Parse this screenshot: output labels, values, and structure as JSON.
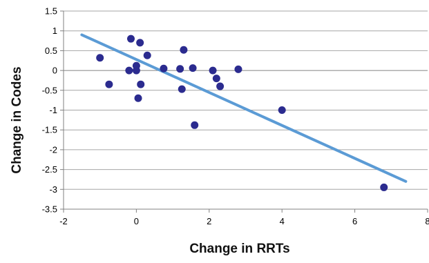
{
  "chart_data": {
    "type": "scatter",
    "title": "",
    "xlabel": "Change in RRTs",
    "ylabel": "Change in Codes",
    "xlim": [
      -2,
      8
    ],
    "ylim": [
      -3.5,
      1.5
    ],
    "x_ticks": [
      -2,
      0,
      2,
      4,
      6,
      8
    ],
    "x_tick_labels": [
      "-2",
      "0",
      "2",
      "4",
      "6",
      "8"
    ],
    "y_ticks": [
      1.5,
      1,
      0.5,
      0,
      -0.5,
      -1,
      -1.5,
      -2,
      -2.5,
      -3,
      -3.5
    ],
    "y_tick_labels": [
      "1.5",
      "1",
      "0.5",
      "0",
      "-0.5",
      "-1",
      "-1.5",
      "-2",
      "-2.5",
      "-3",
      "-3.5"
    ],
    "grid": "horizontal",
    "legend": "none",
    "points": [
      {
        "x": -1.0,
        "y": 0.32
      },
      {
        "x": -0.75,
        "y": -0.35
      },
      {
        "x": -0.2,
        "y": 0.0
      },
      {
        "x": -0.15,
        "y": 0.8
      },
      {
        "x": 0.0,
        "y": 0.12
      },
      {
        "x": 0.0,
        "y": 0.0
      },
      {
        "x": 0.05,
        "y": -0.7
      },
      {
        "x": 0.1,
        "y": 0.7
      },
      {
        "x": 0.12,
        "y": -0.35
      },
      {
        "x": 0.3,
        "y": 0.38
      },
      {
        "x": 0.75,
        "y": 0.05
      },
      {
        "x": 1.2,
        "y": 0.04
      },
      {
        "x": 1.25,
        "y": -0.47
      },
      {
        "x": 1.3,
        "y": 0.52
      },
      {
        "x": 1.55,
        "y": 0.06
      },
      {
        "x": 1.6,
        "y": -1.38
      },
      {
        "x": 2.1,
        "y": 0.0
      },
      {
        "x": 2.2,
        "y": -0.2
      },
      {
        "x": 2.3,
        "y": -0.4
      },
      {
        "x": 2.8,
        "y": 0.03
      },
      {
        "x": 4.0,
        "y": -1.0
      },
      {
        "x": 6.8,
        "y": -2.95
      }
    ],
    "trendline": {
      "x": [
        -1.5,
        7.4
      ],
      "y": [
        0.9,
        -2.8
      ]
    },
    "colors": {
      "points": "#2b2b8f",
      "trendline": "#5b9bd5",
      "grid": "#a6a6a6",
      "axis": "#808080"
    }
  }
}
